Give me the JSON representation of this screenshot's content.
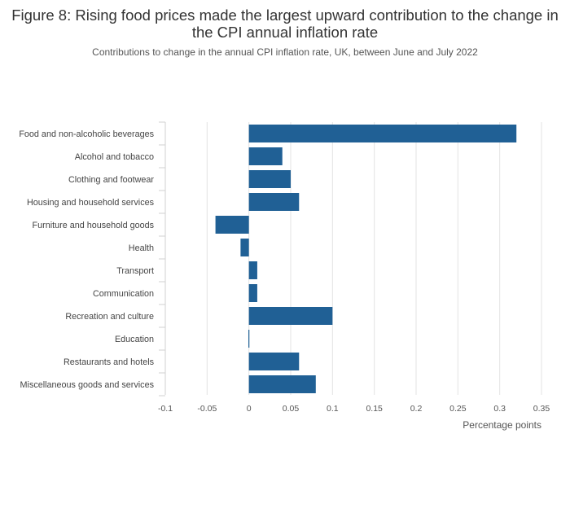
{
  "header": {
    "title": "Figure 8: Rising food prices made the largest upward contribution to the change in the CPI annual inflation rate",
    "subtitle": "Contributions to change in the annual CPI inflation rate, UK, between June and July 2022"
  },
  "chart_data": {
    "type": "bar",
    "orientation": "horizontal",
    "title": "Figure 8: Rising food prices made the largest upward contribution to the change in the CPI annual inflation rate",
    "subtitle": "Contributions to change in the annual CPI inflation rate, UK, between June and July 2022",
    "xlabel": "Percentage points",
    "ylabel": "",
    "xlim": [
      -0.1,
      0.35
    ],
    "xticks": [
      -0.1,
      -0.05,
      0,
      0.05,
      0.1,
      0.15,
      0.2,
      0.25,
      0.3,
      0.35
    ],
    "xtick_labels": [
      "-0.1",
      "-0.05",
      "0",
      "0.05",
      "0.1",
      "0.15",
      "0.2",
      "0.25",
      "0.3",
      "0.35"
    ],
    "grid": true,
    "categories": [
      "Food and non-alcoholic beverages",
      "Alcohol and tobacco",
      "Clothing and footwear",
      "Housing and household services",
      "Furniture and household goods",
      "Health",
      "Transport",
      "Communication",
      "Recreation and culture",
      "Education",
      "Restaurants and hotels",
      "Miscellaneous goods and services"
    ],
    "values": [
      0.32,
      0.04,
      0.05,
      0.06,
      -0.04,
      -0.01,
      0.01,
      0.01,
      0.1,
      0.0,
      0.06,
      0.08
    ],
    "bar_color": "#206095"
  }
}
